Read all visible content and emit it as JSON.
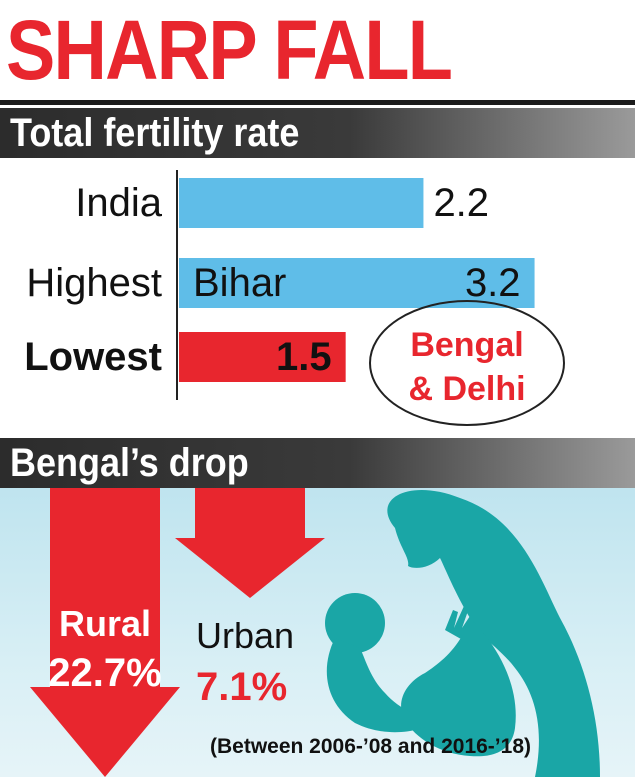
{
  "headline": "SHARP FALL",
  "section_fertility": "Total fertility rate",
  "section_bengal": "Bengal’s drop",
  "annotation": {
    "line1": "Bengal",
    "line2": "& Delhi"
  },
  "colors": {
    "accent_red": "#e8262e",
    "bar_blue": "#5fbde8",
    "illustration_teal": "#1aa6a6"
  },
  "icons": [
    "mother-child-silhouette-icon",
    "down-arrow-icon"
  ],
  "chart_data": [
    {
      "type": "bar",
      "orientation": "horizontal",
      "title": "Total fertility rate",
      "categories": [
        "India",
        "Highest",
        "Lowest"
      ],
      "values": [
        2.2,
        3.2,
        1.5
      ],
      "value_labels": [
        "2.2",
        "3.2",
        "1.5"
      ],
      "bar_labels": [
        "",
        "Bihar",
        ""
      ],
      "xlim": [
        0,
        3.6
      ],
      "grid": false
    },
    {
      "type": "bar",
      "orientation": "vertical-arrows",
      "title": "Bengal’s drop",
      "categories": [
        "Rural",
        "Urban"
      ],
      "values": [
        22.7,
        7.1
      ],
      "value_labels": [
        "22.7%",
        "7.1%"
      ],
      "note": "(Between 2006-’08 and 2016-’18)"
    }
  ]
}
